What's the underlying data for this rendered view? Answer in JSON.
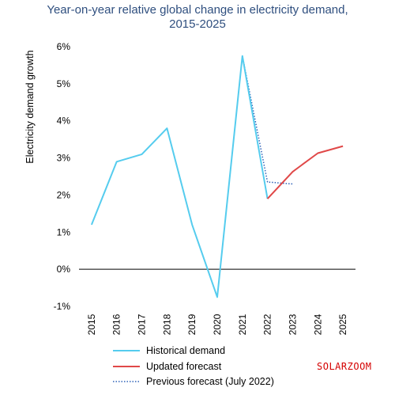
{
  "chart_data": {
    "type": "line",
    "title_line1": "Year-on-year relative global change in electricity demand,",
    "title_line2": "2015-2025",
    "xlabel": "",
    "ylabel": "Electricity demand growth",
    "ylim": [
      -1,
      6
    ],
    "yticks": [
      "-1%",
      "0%",
      "1%",
      "2%",
      "3%",
      "4%",
      "5%",
      "6%"
    ],
    "categories": [
      "2015",
      "2016",
      "2017",
      "2018",
      "2019",
      "2020",
      "2021",
      "2022",
      "2023",
      "2024",
      "2025"
    ],
    "grid": false,
    "legend_position": "bottom",
    "series": [
      {
        "name": "Historical demand",
        "color": "#55ccee",
        "style": "solid",
        "x": [
          "2015",
          "2016",
          "2017",
          "2018",
          "2019",
          "2020",
          "2021",
          "2022"
        ],
        "values": [
          1.2,
          2.9,
          3.1,
          3.8,
          1.2,
          -0.75,
          5.75,
          1.9
        ]
      },
      {
        "name": "Updated forecast",
        "color": "#e04848",
        "style": "solid",
        "x": [
          "2022",
          "2023",
          "2024",
          "2025"
        ],
        "values": [
          1.9,
          2.63,
          3.13,
          3.32
        ]
      },
      {
        "name": "Previous forecast (July 2022)",
        "color": "#2e62b8",
        "style": "dotted",
        "x": [
          "2021",
          "2022",
          "2023"
        ],
        "values": [
          5.75,
          2.35,
          2.3
        ]
      }
    ]
  },
  "watermark": "SOLARZOOM"
}
